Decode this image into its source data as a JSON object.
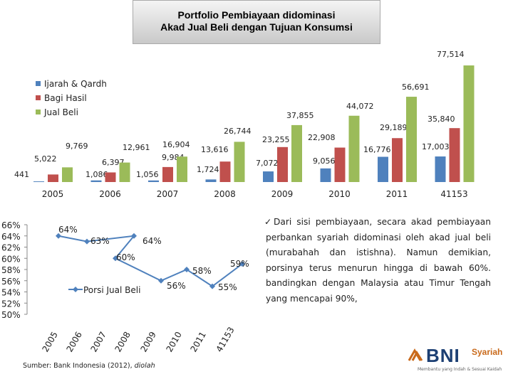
{
  "title": {
    "line1": "Portfolio Pembiayaan didominasi",
    "line2": "Akad Jual Beli dengan Tujuan Konsumsi"
  },
  "note": {
    "check": "✓",
    "text": "Dari sisi pembiayaan, secara akad pembiayaan perbankan syariah didominasi oleh akad jual beli (murabahah dan istishna). Namun demikian, porsinya terus menurun hingga di bawah 60%. bandingkan dengan Malaysia atau Timur Tengah yang mencapai 90%,"
  },
  "source": {
    "prefix": "Sumber: Bank Indonesia (2012), ",
    "suffix": "diolah"
  },
  "logo": {
    "mark": "BNI",
    "name": "BNI",
    "suffix": "Syariah",
    "tagline": "Membantu yang Indah & Sesuai Kaidah"
  },
  "colors": {
    "ijarah": "#4f81bd",
    "bagi_hasil": "#c0504d",
    "jual_beli": "#9bbb59",
    "line": "#4f81bd",
    "logo_blue": "#1c3f73",
    "logo_orange": "#c96a1b"
  },
  "chart_data": [
    {
      "type": "bar",
      "categories": [
        "2005",
        "2006",
        "2007",
        "2008",
        "2009",
        "2010",
        "2011",
        "41153"
      ],
      "series": [
        {
          "name": "Ijarah & Qardh",
          "values": [
            441,
            1086,
            1056,
            1724,
            7072,
            9056,
            16776,
            17003
          ]
        },
        {
          "name": "Bagi Hasil",
          "values": [
            5022,
            6397,
            9984,
            13616,
            23255,
            22908,
            29189,
            35840
          ]
        },
        {
          "name": "Jual Beli",
          "values": [
            9769,
            12961,
            16904,
            26744,
            37855,
            44072,
            56691,
            77514
          ]
        }
      ],
      "value_labels": [
        [
          "441",
          "5,022",
          "9,769"
        ],
        [
          "1,086",
          "6,397",
          "12,961"
        ],
        [
          "1,056",
          "9,984",
          "16,904"
        ],
        [
          "1,724",
          "13,616",
          "26,744"
        ],
        [
          "7,072",
          "23,255",
          "37,855"
        ],
        [
          "9,056",
          "22,908",
          "44,072"
        ],
        [
          "16,776",
          "29,189",
          "56,691"
        ],
        [
          "17,003",
          "35,840",
          "77,514"
        ]
      ],
      "legend_position": "top-left",
      "axes_visible": false,
      "grid": false
    },
    {
      "type": "line",
      "series_name": "Porsi Jual Beli",
      "x": [
        "2005",
        "2006",
        "2007",
        "2008",
        "2009",
        "2010",
        "2011",
        "41153"
      ],
      "y": [
        64,
        63,
        64,
        60,
        56,
        58,
        55,
        59
      ],
      "point_labels": [
        "64%",
        "63%",
        "64%",
        "60%",
        "56%",
        "58%",
        "55%",
        "59%"
      ],
      "y_ticks": [
        "66%",
        "64%",
        "62%",
        "60%",
        "58%",
        "56%",
        "54%",
        "52%",
        "50%"
      ],
      "ylim": [
        50,
        66
      ],
      "legend_position": "center",
      "grid": false
    }
  ]
}
